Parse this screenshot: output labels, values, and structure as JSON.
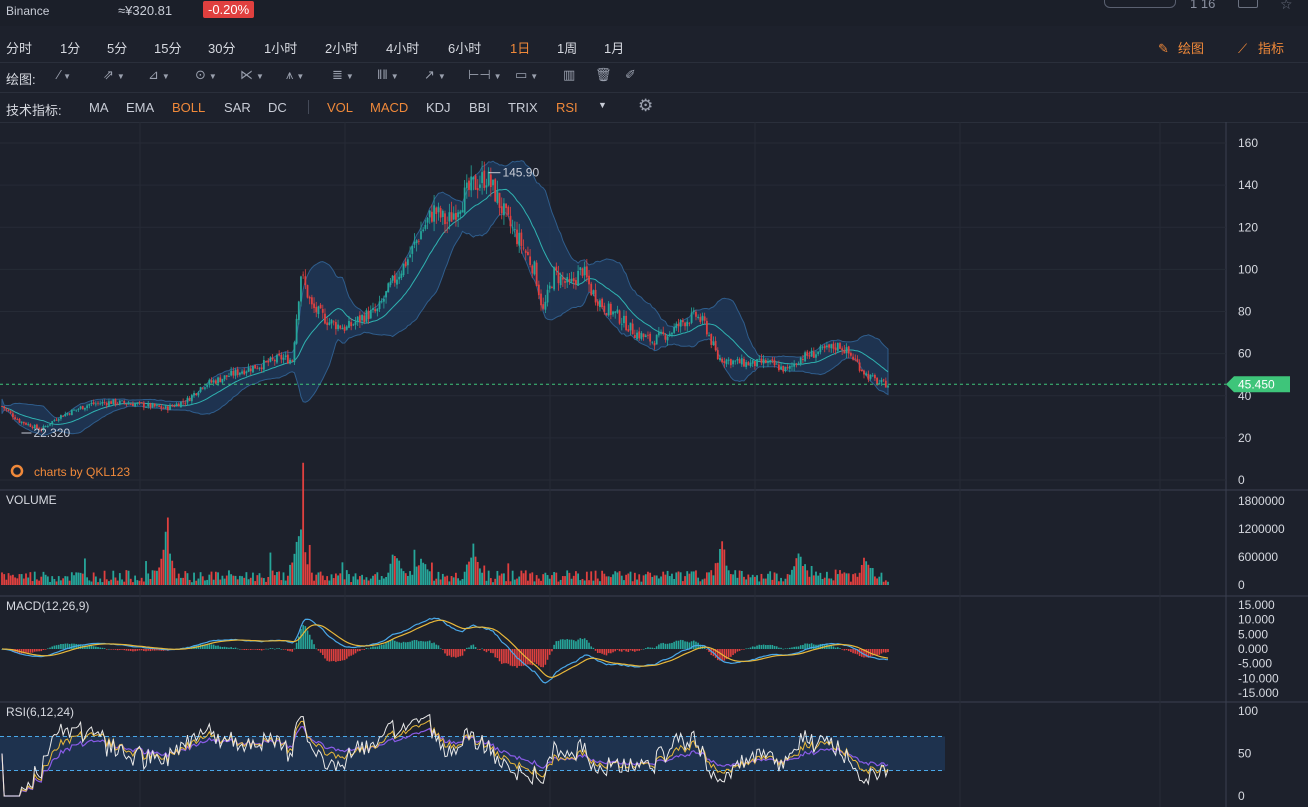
{
  "header": {
    "exchange": "Binance",
    "price_cny": "≈¥320.81",
    "change": "-0.20%",
    "right_text": "1 16"
  },
  "timeframes": [
    {
      "label": "分时",
      "active": false
    },
    {
      "label": "1分",
      "active": false
    },
    {
      "label": "5分",
      "active": false
    },
    {
      "label": "15分",
      "active": false
    },
    {
      "label": "30分",
      "active": false
    },
    {
      "label": "1小时",
      "active": false
    },
    {
      "label": "2小时",
      "active": false
    },
    {
      "label": "4小时",
      "active": false
    },
    {
      "label": "6小时",
      "active": false
    },
    {
      "label": "1日",
      "active": true
    },
    {
      "label": "1周",
      "active": false
    },
    {
      "label": "1月",
      "active": false
    }
  ],
  "right_tools": {
    "draw": "绘图",
    "indicators": "指标"
  },
  "drawing": {
    "label": "绘图:",
    "tools": [
      "line-tool-icon",
      "pen-tool-icon",
      "angle-tool-icon",
      "circle-tool-icon",
      "zigzag-tool-icon",
      "pattern-tool-icon",
      "fib-tool-icon",
      "gann-tool-icon",
      "arrow-tool-icon",
      "range-tool-icon",
      "comment-tool-icon",
      "bars-tool-icon",
      "trash-icon",
      "eraser-icon"
    ]
  },
  "indicators": {
    "label": "技术指标:",
    "main": [
      {
        "label": "MA",
        "on": false
      },
      {
        "label": "EMA",
        "on": false
      },
      {
        "label": "BOLL",
        "on": true
      },
      {
        "label": "SAR",
        "on": false
      },
      {
        "label": "DC",
        "on": false
      }
    ],
    "sub": [
      {
        "label": "VOL",
        "on": true
      },
      {
        "label": "MACD",
        "on": true
      },
      {
        "label": "KDJ",
        "on": false
      },
      {
        "label": "BBI",
        "on": false
      },
      {
        "label": "TRIX",
        "on": false
      },
      {
        "label": "RSI",
        "on": true
      }
    ]
  },
  "chart_data": {
    "type": "candlestick",
    "watermark": "charts by QKL123",
    "price_axis": {
      "ticks": [
        0,
        20,
        40,
        60,
        80,
        100,
        120,
        140,
        160
      ],
      "range": [
        0,
        160
      ]
    },
    "last_price": "45.450",
    "last_price_value": 45.45,
    "high_label": "145.90",
    "high_value": 145.9,
    "low_label": "22.320",
    "low_value": 22.32,
    "close_path": [
      [
        0,
        35
      ],
      [
        8,
        28
      ],
      [
        18,
        24
      ],
      [
        26,
        30
      ],
      [
        40,
        36
      ],
      [
        50,
        37
      ],
      [
        62,
        36
      ],
      [
        75,
        34
      ],
      [
        85,
        38
      ],
      [
        92,
        45
      ],
      [
        100,
        48
      ],
      [
        110,
        52
      ],
      [
        120,
        55
      ],
      [
        128,
        58
      ],
      [
        133,
        57
      ],
      [
        137,
        98
      ],
      [
        142,
        82
      ],
      [
        150,
        75
      ],
      [
        158,
        72
      ],
      [
        166,
        78
      ],
      [
        172,
        80
      ],
      [
        178,
        92
      ],
      [
        186,
        105
      ],
      [
        192,
        118
      ],
      [
        198,
        128
      ],
      [
        204,
        122
      ],
      [
        210,
        132
      ],
      [
        216,
        140
      ],
      [
        222,
        144
      ],
      [
        226,
        136
      ],
      [
        232,
        122
      ],
      [
        238,
        112
      ],
      [
        244,
        100
      ],
      [
        248,
        80
      ],
      [
        253,
        98
      ],
      [
        260,
        92
      ],
      [
        266,
        100
      ],
      [
        270,
        90
      ],
      [
        276,
        82
      ],
      [
        282,
        78
      ],
      [
        290,
        70
      ],
      [
        298,
        66
      ],
      [
        306,
        70
      ],
      [
        312,
        75
      ],
      [
        318,
        78
      ],
      [
        322,
        74
      ],
      [
        328,
        58
      ],
      [
        336,
        56
      ],
      [
        344,
        55
      ],
      [
        350,
        56
      ],
      [
        360,
        52
      ],
      [
        366,
        58
      ],
      [
        372,
        60
      ],
      [
        378,
        62
      ],
      [
        384,
        64
      ],
      [
        390,
        58
      ],
      [
        396,
        50
      ],
      [
        402,
        46
      ],
      [
        406,
        45.45
      ]
    ],
    "volume_axis": {
      "ticks": [
        "1800000",
        "1200000",
        "600000",
        "0"
      ],
      "max": 1800000
    },
    "volume_spikes": [
      [
        75,
        1200000
      ],
      [
        137,
        1450000
      ],
      [
        180,
        850000
      ],
      [
        192,
        800000
      ],
      [
        216,
        900000
      ],
      [
        330,
        1000000
      ],
      [
        365,
        1000000
      ],
      [
        396,
        800000
      ]
    ],
    "macd": {
      "label": "MACD(12,26,9)",
      "ticks": [
        "15.000",
        "10.000",
        "5.000",
        "0.000",
        "-5.000",
        "-10.000",
        "-15.000"
      ],
      "range": [
        -15,
        15
      ]
    },
    "rsi": {
      "label": "RSI(6,12,24)",
      "ticks": [
        "100",
        "50",
        "0"
      ],
      "upper": 70,
      "lower": 30
    },
    "volume_label": "VOLUME",
    "series_colors": {
      "up": "#26a69a",
      "down": "#e0403f",
      "boll_mid": "#2fb2b0",
      "boll_band": "#2f5d8c",
      "macd_dif": "#4aa8e8",
      "macd_dea": "#e8b83a",
      "rsi6": "#e8e8e8",
      "rsi12": "#e8b83a",
      "rsi24": "#8a5ce8",
      "last_price": "#3ec57a",
      "accent": "#f0893a"
    }
  }
}
